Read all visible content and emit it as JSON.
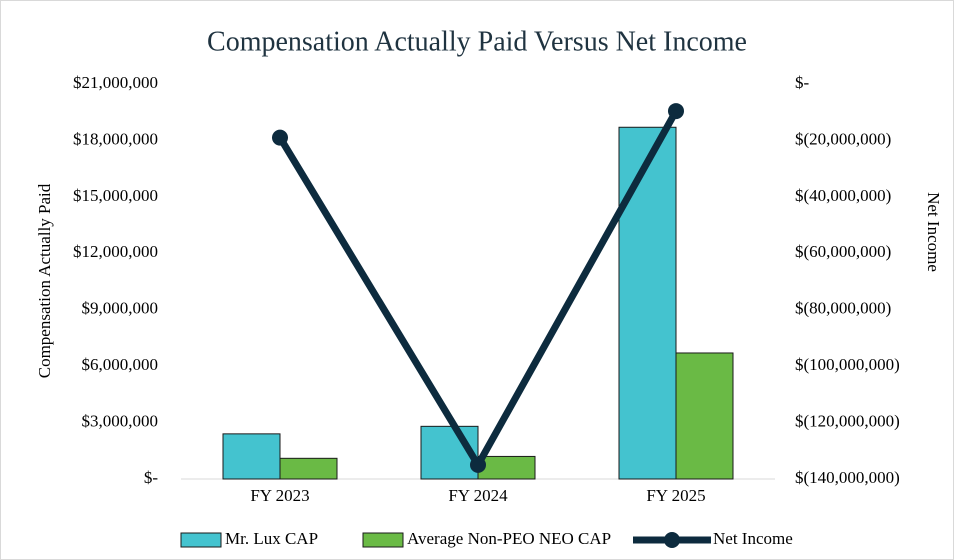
{
  "chart_data": {
    "type": "bar",
    "title": "Compensation Actually Paid Versus Net Income",
    "y_label": "Compensation Actually Paid",
    "y2_label": "Net Income",
    "categories": [
      "FY 2023",
      "FY 2024",
      "FY 2025"
    ],
    "series": [
      {
        "name": "Mr. Lux CAP",
        "color": "#44c3cf",
        "type": "bar",
        "axis": "y",
        "values": [
          2400000,
          2800000,
          18700000
        ]
      },
      {
        "name": "Average Non-PEO NEO CAP",
        "color": "#6aba45",
        "type": "bar",
        "axis": "y",
        "values": [
          1100000,
          1200000,
          6700000
        ]
      },
      {
        "name": "Net Income",
        "color": "#0d2b3e",
        "type": "line",
        "axis": "y2",
        "values": [
          -19000000,
          -135000000,
          -9600000
        ]
      }
    ],
    "ylim": [
      0,
      21000000
    ],
    "yticks": [
      {
        "value": 0,
        "label": "$-"
      },
      {
        "value": 3000000,
        "label": "$3,000,000"
      },
      {
        "value": 6000000,
        "label": "$6,000,000"
      },
      {
        "value": 9000000,
        "label": "$9,000,000"
      },
      {
        "value": 12000000,
        "label": "$12,000,000"
      },
      {
        "value": 15000000,
        "label": "$15,000,000"
      },
      {
        "value": 18000000,
        "label": "$18,000,000"
      },
      {
        "value": 21000000,
        "label": "$21,000,000"
      }
    ],
    "y2lim": [
      -140000000,
      0
    ],
    "y2ticks": [
      {
        "value": -140000000,
        "label": "$(140,000,000)"
      },
      {
        "value": -120000000,
        "label": "$(120,000,000)"
      },
      {
        "value": -100000000,
        "label": "$(100,000,000)"
      },
      {
        "value": -80000000,
        "label": "$(80,000,000)"
      },
      {
        "value": -60000000,
        "label": "$(60,000,000)"
      },
      {
        "value": -40000000,
        "label": "$(40,000,000)"
      },
      {
        "value": -20000000,
        "label": "$(20,000,000)"
      },
      {
        "value": 0,
        "label": "$-"
      }
    ],
    "legend": "bottom"
  }
}
